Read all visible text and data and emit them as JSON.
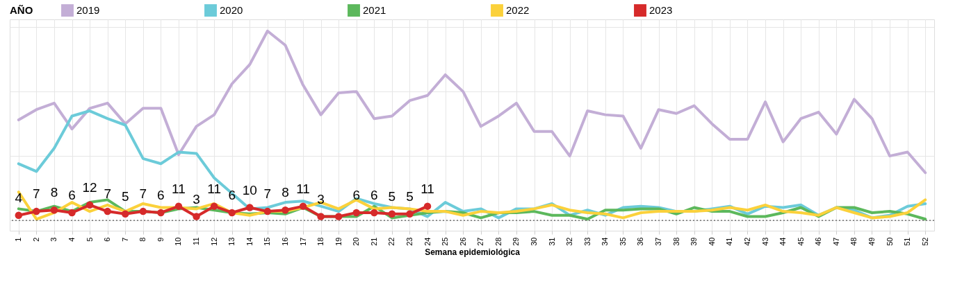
{
  "chart_data": {
    "type": "line",
    "xlabel": "Semana epidemiológica",
    "legend_title": "AÑO",
    "legend": "top",
    "grid": true,
    "line_style": "solid",
    "categories": [
      "1",
      "2",
      "3",
      "4",
      "5",
      "6",
      "7",
      "8",
      "9",
      "10",
      "11",
      "12",
      "13",
      "14",
      "15",
      "16",
      "17",
      "18",
      "19",
      "20",
      "21",
      "22",
      "23",
      "24",
      "25",
      "26",
      "27",
      "28",
      "29",
      "30",
      "31",
      "32",
      "33",
      "34",
      "35",
      "36",
      "37",
      "38",
      "39",
      "40",
      "41",
      "42",
      "43",
      "44",
      "45",
      "46",
      "47",
      "48",
      "49",
      "50",
      "51",
      "52"
    ],
    "ylim": [
      -8,
      156
    ],
    "yticks": [
      {
        "value": 0,
        "label": null
      },
      {
        "value": 50,
        "label": null
      },
      {
        "value": 100,
        "label": null
      },
      {
        "value": 150,
        "label": null
      }
    ],
    "ref_lines": [
      {
        "axis": "y",
        "value": 0,
        "line_style": "dotted",
        "color": "#555555"
      }
    ],
    "series": [
      {
        "name": "2019",
        "color": "#c3aed6",
        "values": [
          78,
          86,
          91,
          71,
          87,
          91,
          75,
          87,
          87,
          51,
          73,
          82,
          106,
          121,
          147,
          136,
          105,
          82,
          99,
          100,
          79,
          81,
          93,
          97,
          113,
          100,
          73,
          81,
          91,
          69,
          69,
          50,
          85,
          82,
          81,
          56,
          86,
          83,
          89,
          75,
          63,
          63,
          92,
          61,
          79,
          84,
          67,
          94,
          79,
          50,
          53,
          37
        ]
      },
      {
        "name": "2020",
        "color": "#6ccbd9",
        "values": [
          44,
          38,
          56,
          81,
          85,
          79,
          74,
          48,
          44,
          53,
          52,
          33,
          21,
          9,
          10,
          14,
          15,
          11,
          7,
          17,
          13,
          10,
          9,
          3,
          14,
          7,
          9,
          2,
          9,
          9,
          13,
          4,
          8,
          4,
          10,
          11,
          10,
          7,
          7,
          9,
          11,
          5,
          11,
          10,
          12,
          4,
          10,
          8,
          2,
          4,
          11,
          13
        ]
      },
      {
        "name": "2021",
        "color": "#5cb85c",
        "values": [
          9,
          7,
          11,
          7,
          14,
          16,
          7,
          7,
          6,
          9,
          10,
          8,
          6,
          5,
          6,
          5,
          10,
          3,
          3,
          3,
          11,
          2,
          4,
          6,
          7,
          6,
          2,
          6,
          6,
          7,
          4,
          4,
          1,
          8,
          8,
          9,
          9,
          5,
          10,
          7,
          7,
          3,
          3,
          6,
          10,
          3,
          10,
          10,
          6,
          7,
          5,
          1
        ]
      },
      {
        "name": "2022",
        "color": "#fbd13b",
        "values": [
          22,
          1,
          6,
          14,
          7,
          12,
          7,
          13,
          10,
          10,
          9,
          13,
          6,
          4,
          7,
          7,
          10,
          14,
          9,
          16,
          9,
          10,
          9,
          7,
          7,
          4,
          7,
          6,
          7,
          9,
          12,
          8,
          6,
          5,
          2,
          6,
          7,
          7,
          7,
          8,
          10,
          8,
          12,
          7,
          6,
          4,
          10,
          6,
          2,
          3,
          6,
          16
        ]
      },
      {
        "name": "2023",
        "color": "#d62a2a",
        "marker": "circle",
        "values": [
          4,
          7,
          8,
          6,
          12,
          7,
          5,
          7,
          6,
          11,
          3,
          11,
          6,
          10,
          7,
          8,
          11,
          3,
          3,
          6,
          6,
          5,
          5,
          11,
          null,
          null,
          null,
          null,
          null,
          null,
          null,
          null,
          null,
          null,
          null,
          null,
          null,
          null,
          null,
          null,
          null,
          null,
          null,
          null,
          null,
          null,
          null,
          null,
          null,
          null,
          null,
          null
        ],
        "value_labels": [
          "4",
          "7",
          "8",
          "6",
          "12",
          "7",
          "5",
          "7",
          "6",
          "11",
          "3",
          "11",
          "6",
          "10",
          "7",
          "8",
          "11",
          "3",
          null,
          "6",
          "6",
          "5",
          "5",
          "11",
          null,
          null,
          null,
          null,
          null,
          null,
          null,
          null,
          null,
          null,
          null,
          null,
          null,
          null,
          null,
          null,
          null,
          null,
          null,
          null,
          null,
          null,
          null,
          null,
          null,
          null,
          null,
          null
        ]
      }
    ]
  }
}
